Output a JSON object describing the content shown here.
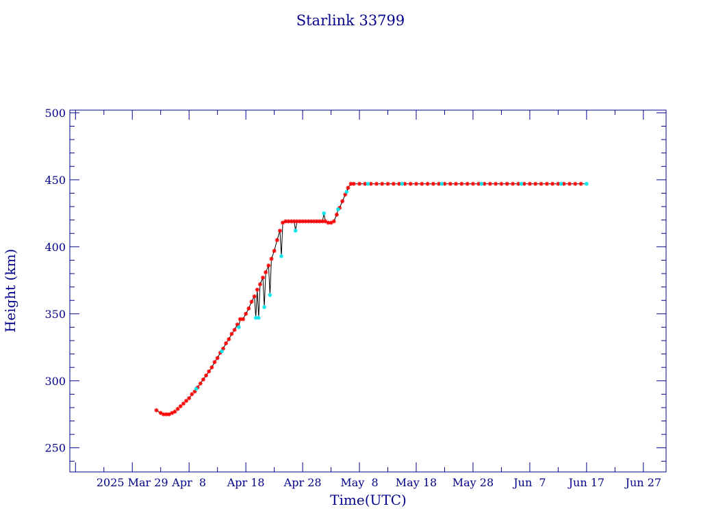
{
  "chart_data": {
    "type": "line",
    "title": "Starlink 33799",
    "xlabel": "Time(UTC)",
    "ylabel": "Height (km)",
    "ylim": [
      232,
      502
    ],
    "xlim": [
      "2025-03-18",
      "2025-07-01"
    ],
    "grid": false,
    "x_tick_labels": [
      {
        "date": "2025-03-29",
        "label": "2025 Mar 29"
      },
      {
        "date": "2025-04-08",
        "label": "Apr  8"
      },
      {
        "date": "2025-04-18",
        "label": "Apr 18"
      },
      {
        "date": "2025-04-28",
        "label": "Apr 28"
      },
      {
        "date": "2025-05-08",
        "label": "May  8"
      },
      {
        "date": "2025-05-18",
        "label": "May 18"
      },
      {
        "date": "2025-05-28",
        "label": "May 28"
      },
      {
        "date": "2025-06-07",
        "label": "Jun  7"
      },
      {
        "date": "2025-06-17",
        "label": "Jun 17"
      },
      {
        "date": "2025-06-27",
        "label": "Jun 27"
      }
    ],
    "y_tick_labels": [
      {
        "value": 250,
        "label": "250"
      },
      {
        "value": 300,
        "label": "300"
      },
      {
        "value": 350,
        "label": "350"
      },
      {
        "value": 400,
        "label": "400"
      },
      {
        "value": 450,
        "label": "450"
      },
      {
        "value": 500,
        "label": "500"
      }
    ],
    "colors": {
      "axis": "#00008b",
      "text": "#00008b",
      "line": "#000000",
      "primary_marker": "#ff0000",
      "secondary_marker": "#00e5ee"
    },
    "series": [
      {
        "marker_color": "#ff0000",
        "x": [
          "2025-04-02T06:00",
          "2025-04-03T00:00",
          "2025-04-03T12:00",
          "2025-04-04T00:00",
          "2025-04-04T12:00",
          "2025-04-05T00:00",
          "2025-04-05T12:00",
          "2025-04-06T00:00",
          "2025-04-06T12:00",
          "2025-04-07T00:00",
          "2025-04-07T12:00",
          "2025-04-08T00:00",
          "2025-04-08T12:00",
          "2025-04-09T00:00",
          "2025-04-09T12:00",
          "2025-04-10T00:00",
          "2025-04-10T12:00",
          "2025-04-11T00:00",
          "2025-04-11T12:00",
          "2025-04-12T00:00",
          "2025-04-12T12:00",
          "2025-04-13T00:00",
          "2025-04-13T12:00",
          "2025-04-14T00:00",
          "2025-04-14T12:00",
          "2025-04-15T00:00",
          "2025-04-15T12:00",
          "2025-04-16T00:00",
          "2025-04-16T12:00",
          "2025-04-17T00:00",
          "2025-04-17T12:00",
          "2025-04-18T00:00",
          "2025-04-18T12:00",
          "2025-04-19T00:00",
          "2025-04-19T12:00",
          "2025-04-20T00:00",
          "2025-04-20T12:00",
          "2025-04-21T00:00",
          "2025-04-21T12:00",
          "2025-04-22T00:00",
          "2025-04-22T12:00",
          "2025-04-23T00:00",
          "2025-04-23T12:00",
          "2025-04-24T00:00",
          "2025-04-24T12:00",
          "2025-04-25T00:00",
          "2025-04-25T12:00",
          "2025-04-26T00:00",
          "2025-04-26T12:00",
          "2025-04-27T00:00",
          "2025-04-27T12:00",
          "2025-04-28T00:00",
          "2025-04-28T12:00",
          "2025-04-29T00:00",
          "2025-04-29T12:00",
          "2025-04-30T00:00",
          "2025-04-30T12:00",
          "2025-05-01T00:00",
          "2025-05-01T12:00",
          "2025-05-02T00:00",
          "2025-05-02T12:00",
          "2025-05-03T00:00",
          "2025-05-03T12:00",
          "2025-05-04T00:00",
          "2025-05-04T12:00",
          "2025-05-05T00:00",
          "2025-05-05T12:00",
          "2025-05-06T00:00",
          "2025-05-06T12:00",
          "2025-05-07T00:00",
          "2025-05-08T00:00",
          "2025-05-09T00:00",
          "2025-05-10T00:00",
          "2025-05-11T00:00",
          "2025-05-12T00:00",
          "2025-05-13T00:00",
          "2025-05-14T00:00",
          "2025-05-15T00:00",
          "2025-05-16T00:00",
          "2025-05-17T00:00",
          "2025-05-18T00:00",
          "2025-05-19T00:00",
          "2025-05-20T00:00",
          "2025-05-21T00:00",
          "2025-05-22T00:00",
          "2025-05-23T00:00",
          "2025-05-24T00:00",
          "2025-05-25T00:00",
          "2025-05-26T00:00",
          "2025-05-27T00:00",
          "2025-05-28T00:00",
          "2025-05-29T00:00",
          "2025-05-30T00:00",
          "2025-05-31T00:00",
          "2025-06-01T00:00",
          "2025-06-02T00:00",
          "2025-06-03T00:00",
          "2025-06-04T00:00",
          "2025-06-05T00:00",
          "2025-06-06T00:00",
          "2025-06-07T00:00",
          "2025-06-08T00:00",
          "2025-06-09T00:00",
          "2025-06-10T00:00",
          "2025-06-11T00:00",
          "2025-06-12T00:00",
          "2025-06-13T00:00",
          "2025-06-14T00:00",
          "2025-06-15T00:00",
          "2025-06-16T00:00"
        ],
        "y": [
          278,
          276,
          275,
          275,
          275,
          276,
          277,
          279,
          281,
          283,
          285,
          287,
          290,
          292,
          295,
          298,
          301,
          304,
          307,
          310,
          314,
          317,
          321,
          324,
          328,
          331,
          335,
          338,
          342,
          346,
          346,
          350,
          354,
          359,
          363,
          368,
          372,
          377,
          381,
          386,
          391,
          397,
          405,
          412,
          418,
          419,
          419,
          419,
          419,
          419,
          419,
          419,
          419,
          419,
          419,
          419,
          419,
          419,
          419,
          419,
          418,
          418,
          419,
          424,
          429,
          434,
          439,
          444,
          447,
          447,
          447,
          447,
          447,
          447,
          447,
          447,
          447,
          447,
          447,
          447,
          447,
          447,
          447,
          447,
          447,
          447,
          447,
          447,
          447,
          447,
          447,
          447,
          447,
          447,
          447,
          447,
          447,
          447,
          447,
          447,
          447,
          447,
          447,
          447,
          447,
          447,
          447,
          447,
          447,
          447
        ]
      },
      {
        "marker_color": "#00e5ee",
        "x": [
          "2025-04-09T06:00",
          "2025-04-13T18:00",
          "2025-04-16T18:00",
          "2025-04-19T18:00",
          "2025-04-20T06:00",
          "2025-04-21T06:00",
          "2025-04-22T06:00",
          "2025-04-24T06:00",
          "2025-04-26T18:00",
          "2025-05-01T18:00",
          "2025-05-04T06:00",
          "2025-05-05T18:00",
          "2025-05-09T12:00",
          "2025-05-15T12:00",
          "2025-05-22T12:00",
          "2025-05-29T12:00",
          "2025-06-05T12:00",
          "2025-06-12T12:00",
          "2025-06-17T00:00"
        ],
        "y": [
          294,
          322,
          340,
          347,
          347,
          355,
          364,
          393,
          412,
          425,
          428,
          441,
          447,
          447,
          447,
          447,
          447,
          447,
          447
        ]
      }
    ]
  }
}
